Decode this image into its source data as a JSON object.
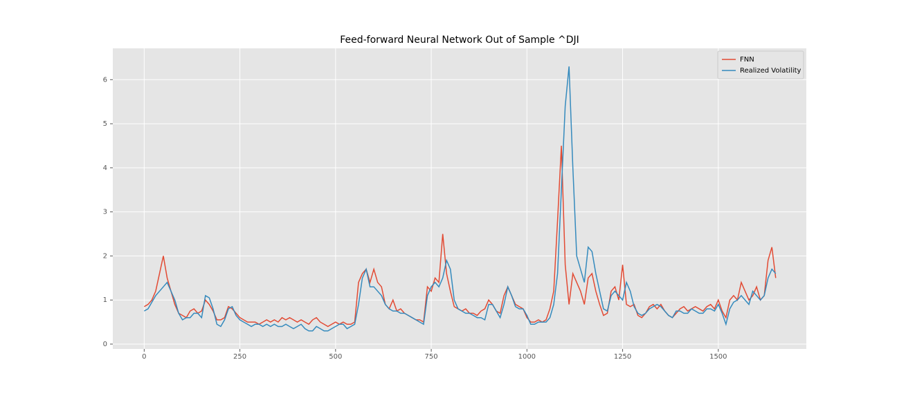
{
  "chart_data": {
    "type": "line",
    "title": "Feed-forward Neural Network Out of Sample ^DJI",
    "x": [
      0,
      10,
      20,
      30,
      40,
      50,
      60,
      70,
      80,
      90,
      100,
      110,
      120,
      130,
      140,
      150,
      160,
      170,
      180,
      190,
      200,
      210,
      220,
      230,
      240,
      250,
      260,
      270,
      280,
      290,
      300,
      310,
      320,
      330,
      340,
      350,
      360,
      370,
      380,
      390,
      400,
      410,
      420,
      430,
      440,
      450,
      460,
      470,
      480,
      490,
      500,
      510,
      520,
      530,
      540,
      550,
      560,
      570,
      580,
      590,
      600,
      610,
      620,
      630,
      640,
      650,
      660,
      670,
      680,
      690,
      700,
      710,
      720,
      730,
      740,
      750,
      760,
      770,
      780,
      790,
      800,
      810,
      820,
      830,
      840,
      850,
      860,
      870,
      880,
      890,
      900,
      910,
      920,
      930,
      940,
      950,
      960,
      970,
      980,
      990,
      1000,
      1010,
      1020,
      1030,
      1040,
      1050,
      1060,
      1070,
      1080,
      1090,
      1100,
      1110,
      1120,
      1130,
      1140,
      1150,
      1160,
      1170,
      1180,
      1190,
      1200,
      1210,
      1220,
      1230,
      1240,
      1250,
      1260,
      1270,
      1280,
      1290,
      1300,
      1310,
      1320,
      1330,
      1340,
      1350,
      1360,
      1370,
      1380,
      1390,
      1400,
      1410,
      1420,
      1430,
      1440,
      1450,
      1460,
      1470,
      1480,
      1490,
      1500,
      1510,
      1520,
      1530,
      1540,
      1550,
      1560,
      1570,
      1580,
      1590,
      1600,
      1610,
      1620,
      1630,
      1640,
      1650
    ],
    "series": [
      {
        "name": "FNN",
        "color": "#e24a33",
        "values": [
          0.85,
          0.9,
          1.0,
          1.2,
          1.6,
          2.0,
          1.5,
          1.2,
          0.9,
          0.7,
          0.65,
          0.6,
          0.75,
          0.8,
          0.7,
          0.75,
          1.0,
          0.9,
          0.75,
          0.55,
          0.55,
          0.6,
          0.85,
          0.8,
          0.7,
          0.6,
          0.55,
          0.5,
          0.5,
          0.5,
          0.45,
          0.5,
          0.55,
          0.5,
          0.55,
          0.5,
          0.6,
          0.55,
          0.6,
          0.55,
          0.5,
          0.55,
          0.5,
          0.45,
          0.55,
          0.6,
          0.5,
          0.45,
          0.4,
          0.45,
          0.5,
          0.45,
          0.5,
          0.45,
          0.45,
          0.5,
          1.4,
          1.6,
          1.7,
          1.4,
          1.7,
          1.4,
          1.3,
          0.9,
          0.8,
          1.0,
          0.75,
          0.8,
          0.7,
          0.65,
          0.6,
          0.55,
          0.55,
          0.5,
          1.3,
          1.2,
          1.5,
          1.4,
          2.5,
          1.6,
          1.2,
          0.85,
          0.8,
          0.75,
          0.8,
          0.7,
          0.7,
          0.65,
          0.75,
          0.8,
          1.0,
          0.9,
          0.75,
          0.7,
          1.1,
          1.3,
          1.1,
          0.9,
          0.85,
          0.8,
          0.6,
          0.5,
          0.5,
          0.55,
          0.5,
          0.55,
          0.8,
          1.2,
          2.8,
          4.5,
          1.8,
          0.9,
          1.6,
          1.4,
          1.2,
          0.9,
          1.5,
          1.6,
          1.2,
          0.9,
          0.65,
          0.7,
          1.2,
          1.3,
          1.0,
          1.8,
          0.9,
          0.85,
          0.9,
          0.65,
          0.6,
          0.7,
          0.85,
          0.9,
          0.8,
          0.9,
          0.75,
          0.65,
          0.6,
          0.7,
          0.8,
          0.85,
          0.75,
          0.8,
          0.85,
          0.8,
          0.75,
          0.85,
          0.9,
          0.8,
          1.0,
          0.75,
          0.6,
          1.0,
          1.1,
          1.0,
          1.4,
          1.2,
          1.0,
          1.1,
          1.3,
          1.0,
          1.1,
          1.9,
          2.2,
          1.5
        ]
      },
      {
        "name": "Realized Volatility",
        "color": "#348abd",
        "values": [
          0.75,
          0.8,
          0.95,
          1.1,
          1.2,
          1.3,
          1.4,
          1.2,
          1.0,
          0.7,
          0.55,
          0.6,
          0.6,
          0.7,
          0.7,
          0.6,
          1.1,
          1.05,
          0.8,
          0.45,
          0.4,
          0.55,
          0.8,
          0.85,
          0.65,
          0.55,
          0.5,
          0.45,
          0.4,
          0.45,
          0.45,
          0.4,
          0.45,
          0.4,
          0.45,
          0.4,
          0.4,
          0.45,
          0.4,
          0.35,
          0.4,
          0.45,
          0.35,
          0.3,
          0.3,
          0.4,
          0.35,
          0.3,
          0.3,
          0.35,
          0.4,
          0.45,
          0.45,
          0.35,
          0.4,
          0.45,
          0.9,
          1.5,
          1.7,
          1.3,
          1.3,
          1.2,
          1.1,
          0.9,
          0.8,
          0.75,
          0.75,
          0.7,
          0.7,
          0.65,
          0.6,
          0.55,
          0.5,
          0.45,
          1.1,
          1.3,
          1.4,
          1.3,
          1.5,
          1.9,
          1.7,
          1.0,
          0.8,
          0.75,
          0.7,
          0.7,
          0.65,
          0.6,
          0.6,
          0.55,
          0.9,
          0.9,
          0.75,
          0.6,
          0.9,
          1.3,
          1.1,
          0.85,
          0.8,
          0.8,
          0.65,
          0.45,
          0.45,
          0.5,
          0.5,
          0.5,
          0.6,
          0.9,
          1.6,
          3.5,
          5.4,
          6.3,
          4.0,
          2.0,
          1.7,
          1.4,
          2.2,
          2.1,
          1.6,
          1.2,
          0.8,
          0.75,
          1.1,
          1.2,
          1.1,
          1.0,
          1.4,
          1.2,
          0.85,
          0.7,
          0.65,
          0.7,
          0.8,
          0.85,
          0.9,
          0.85,
          0.75,
          0.65,
          0.6,
          0.75,
          0.75,
          0.7,
          0.7,
          0.8,
          0.75,
          0.7,
          0.7,
          0.8,
          0.8,
          0.75,
          0.9,
          0.7,
          0.45,
          0.8,
          0.95,
          1.0,
          1.1,
          1.0,
          0.9,
          1.2,
          1.1,
          1.0,
          1.1,
          1.5,
          1.7,
          1.6
        ]
      }
    ],
    "xlim": [
      -82,
      1730
    ],
    "ylim": [
      -0.11,
      6.71
    ],
    "xticks": [
      0,
      250,
      500,
      750,
      1000,
      1250,
      1500
    ],
    "yticks": [
      0,
      1,
      2,
      3,
      4,
      5,
      6
    ],
    "grid": true,
    "legend": "upper right"
  }
}
